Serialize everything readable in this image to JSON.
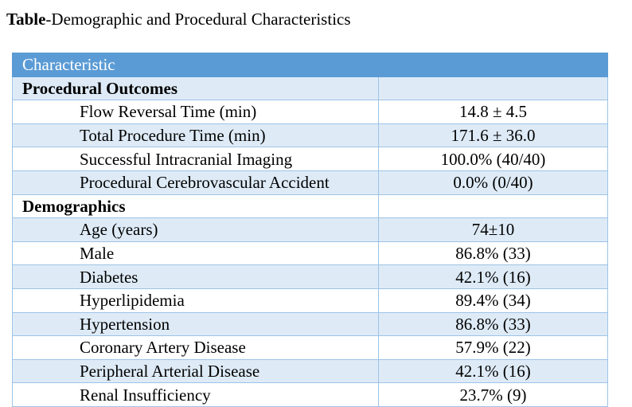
{
  "title": {
    "bold": "Table",
    "rest": "-Demographic and Procedural Characteristics"
  },
  "table": {
    "header": "Characteristic",
    "sections": [
      {
        "label": "Procedural Outcomes",
        "rows": [
          {
            "label": "Flow Reversal Time (min)",
            "value": "14.8 ± 4.5"
          },
          {
            "label": "Total Procedure Time (min)",
            "value": "171.6 ± 36.0"
          },
          {
            "label": "Successful Intracranial Imaging",
            "value": "100.0% (40/40)"
          },
          {
            "label": "Procedural Cerebrovascular Accident",
            "value": "0.0% (0/40)"
          }
        ]
      },
      {
        "label": "Demographics",
        "rows": [
          {
            "label": "Age (years)",
            "value": "74±10"
          },
          {
            "label": "Male",
            "value": "86.8% (33)"
          },
          {
            "label": "Diabetes",
            "value": "42.1% (16)"
          },
          {
            "label": "Hyperlipidemia",
            "value": "89.4% (34)"
          },
          {
            "label": "Hypertension",
            "value": "86.8% (33)"
          },
          {
            "label": "Coronary Artery Disease",
            "value": "57.9% (22)"
          },
          {
            "label": "Peripheral Arterial Disease",
            "value": "42.1% (16)"
          },
          {
            "label": "Renal Insufficiency",
            "value": "23.7% (9)"
          }
        ]
      }
    ]
  },
  "colors": {
    "header_bg": "#5b9bd5",
    "band_bg": "#deebf7",
    "border": "#9dc3e6"
  }
}
